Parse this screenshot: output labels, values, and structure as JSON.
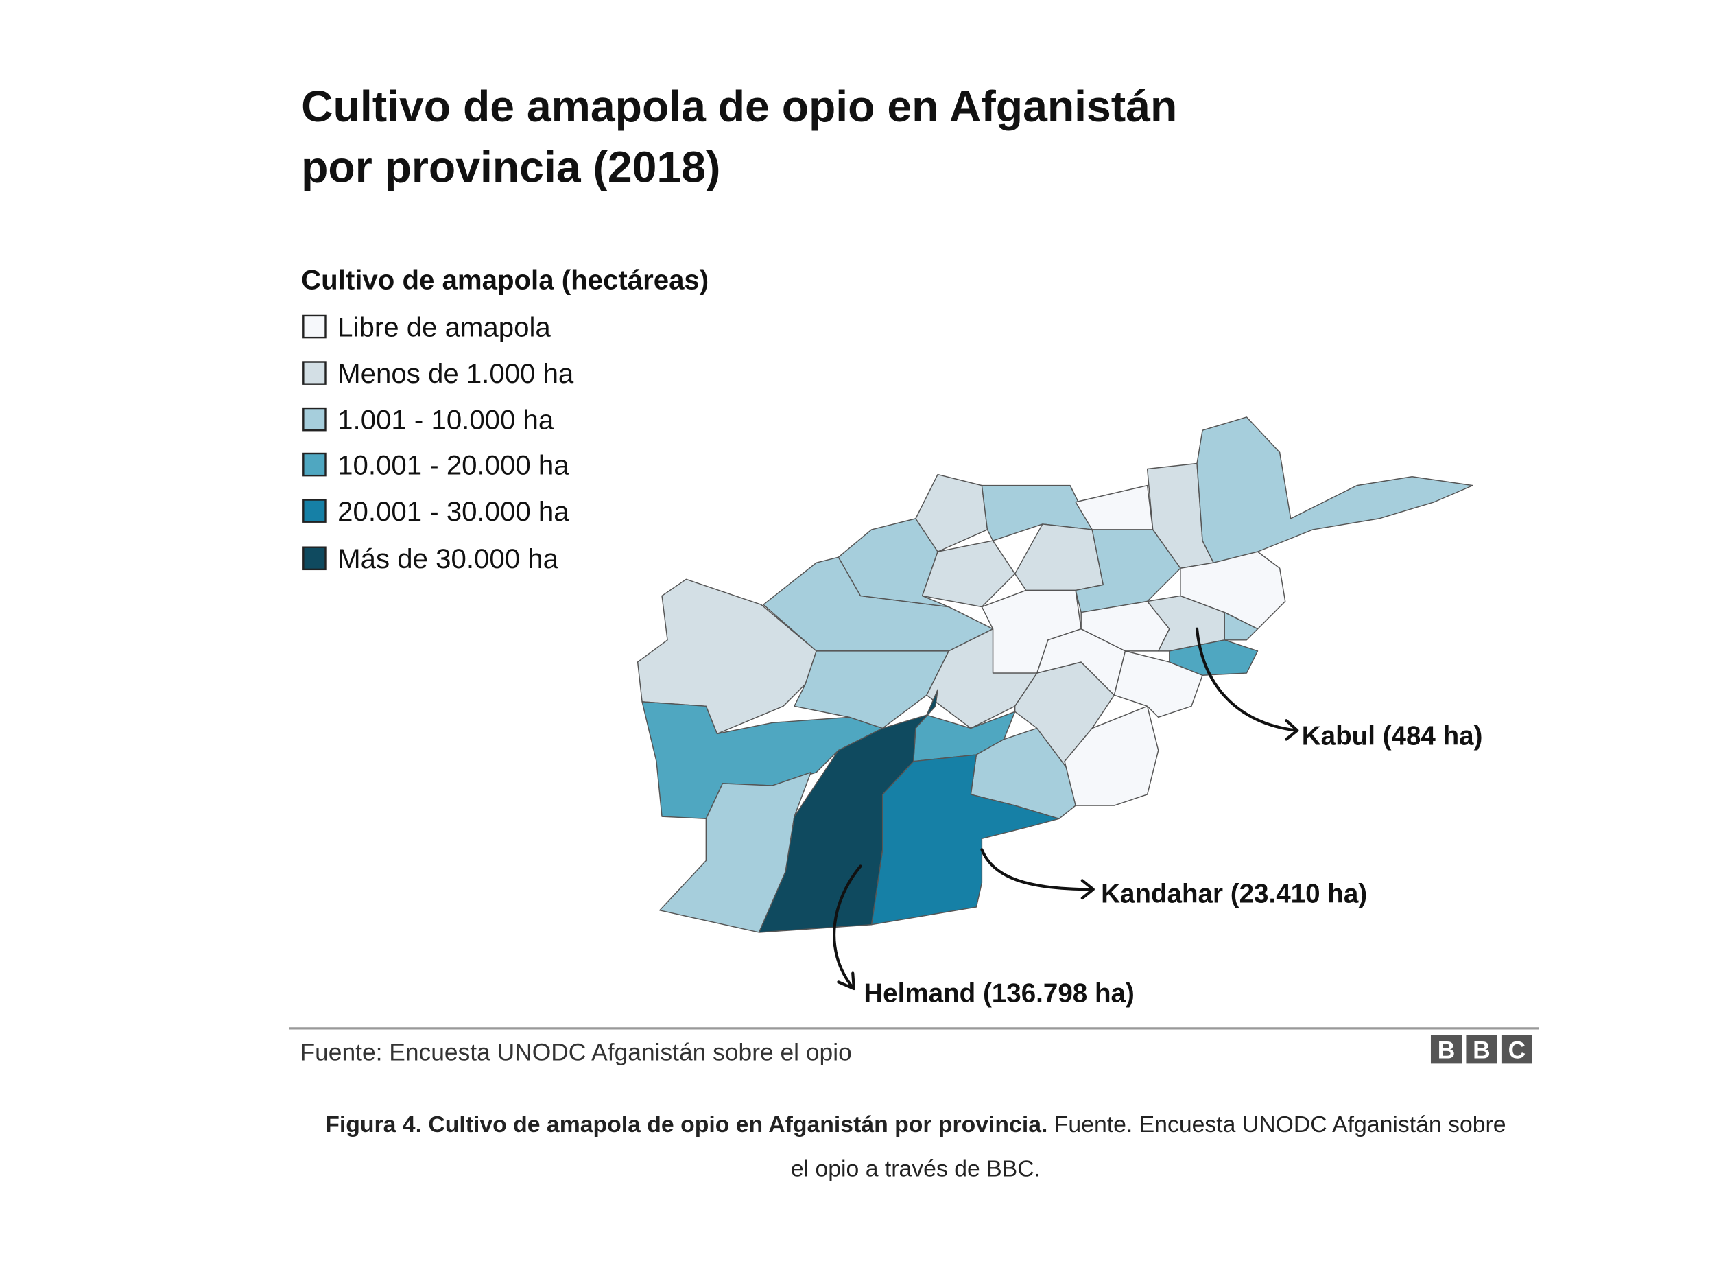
{
  "title": [
    "Cultivo de amapola de opio en Afganistán",
    "por provincia (2018)"
  ],
  "legend": {
    "title": "Cultivo de amapola (hectáreas)",
    "items": [
      {
        "label": "Libre de amapola",
        "color": "#f6f8fb"
      },
      {
        "label": "Menos de 1.000 ha",
        "color": "#d3dfe5"
      },
      {
        "label": "1.001 - 10.000 ha",
        "color": "#a6cedc"
      },
      {
        "label": "10.001 - 20.000 ha",
        "color": "#4fa7c1"
      },
      {
        "label": "20.001 - 30.000 ha",
        "color": "#1680a6"
      },
      {
        "label": "Más de 30.000 ha",
        "color": "#0f4a5f"
      }
    ]
  },
  "annotations": {
    "kabul": "Kabul (484 ha)",
    "kandahar": "Kandahar (23.410 ha)",
    "helmand": "Helmand (136.798 ha)"
  },
  "source": "Fuente: Encuesta UNODC Afganistán sobre el opio",
  "logo": [
    "B",
    "B",
    "C"
  ],
  "caption": {
    "bold": "Figura 4. Cultivo de amapola de opio en Afganistán por provincia.",
    "lines": [
      "Fuente. Encuesta UNODC Afganistán sobre",
      "el opio a través de BBC."
    ]
  }
}
